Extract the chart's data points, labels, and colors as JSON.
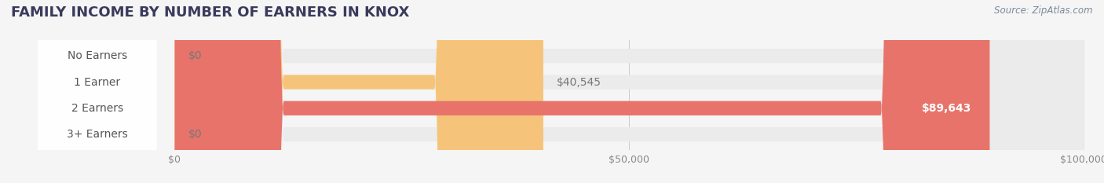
{
  "title": "FAMILY INCOME BY NUMBER OF EARNERS IN KNOX",
  "source": "Source: ZipAtlas.com",
  "categories": [
    "No Earners",
    "1 Earner",
    "2 Earners",
    "3+ Earners"
  ],
  "values": [
    0,
    40545,
    89643,
    0
  ],
  "bar_colors": [
    "#f4a0b0",
    "#f5c47a",
    "#e8736a",
    "#a8c4e0"
  ],
  "label_colors": [
    "#888888",
    "#888888",
    "#ffffff",
    "#888888"
  ],
  "max_value": 100000,
  "x_ticks": [
    0,
    50000,
    100000
  ],
  "x_tick_labels": [
    "$0",
    "$50,000",
    "$100,000"
  ],
  "background_color": "#f5f5f5",
  "bar_background_color": "#ebebeb",
  "title_color": "#3a3a5c",
  "source_color": "#7a8a9a",
  "label_fontsize": 10,
  "title_fontsize": 13,
  "bar_height": 0.55
}
